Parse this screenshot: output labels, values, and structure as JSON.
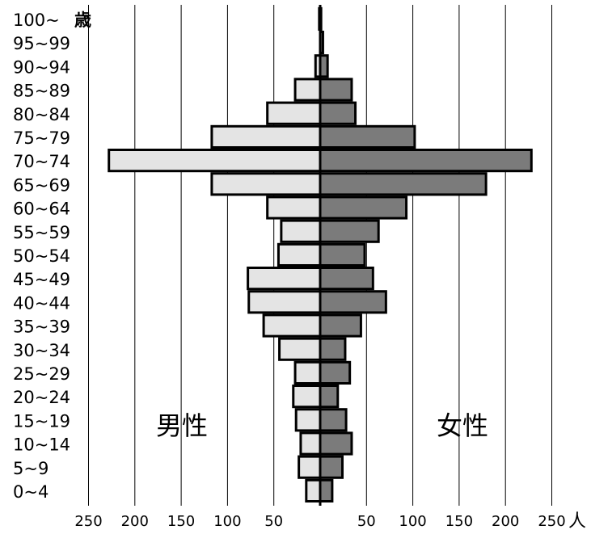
{
  "chart_data": {
    "type": "bar",
    "orientation": "horizontal",
    "layout": "population-pyramid",
    "age_unit_label": "歳",
    "value_unit_label": "人",
    "male_label": "男性",
    "female_label": "女性",
    "categories": [
      "0~4",
      "5~9",
      "10~14",
      "15~19",
      "20~24",
      "25~29",
      "30~34",
      "35~39",
      "40~44",
      "45~49",
      "50~54",
      "55~59",
      "60~64",
      "65~69",
      "70~74",
      "75~79",
      "80~84",
      "85~89",
      "90~94",
      "95~99",
      "100~"
    ],
    "series": [
      {
        "name": "男性",
        "values": [
          15,
          23,
          21,
          26,
          29,
          27,
          44,
          61,
          77,
          78,
          45,
          42,
          57,
          117,
          228,
          117,
          57,
          27,
          5,
          0,
          1
        ]
      },
      {
        "name": "女性",
        "values": [
          13,
          24,
          34,
          28,
          19,
          32,
          27,
          44,
          71,
          57,
          48,
          63,
          93,
          179,
          228,
          102,
          38,
          34,
          8,
          3,
          1
        ]
      }
    ],
    "x_ticks_male": [
      250,
      200,
      150,
      100,
      50
    ],
    "x_ticks_female": [
      50,
      100,
      150,
      200,
      250
    ],
    "xlim": [
      -250,
      250
    ],
    "grid": "vertical",
    "colors": {
      "male_fill": "#e4e4e4",
      "female_fill": "#7b7b7b",
      "outline": "#000000"
    }
  }
}
